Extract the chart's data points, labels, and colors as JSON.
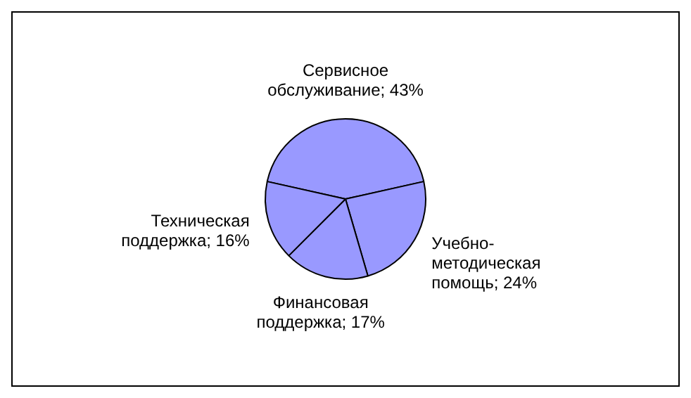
{
  "chart_data": {
    "type": "pie",
    "categories": [
      "Сервисное обслуживание",
      "Учебно-методическая помощь",
      "Финансовая поддержка",
      "Техническая поддержка"
    ],
    "values": [
      43,
      24,
      17,
      16
    ],
    "value_labels": [
      "43%",
      "24%",
      "17%",
      "16%"
    ],
    "colors": [
      "#9999ff",
      "#9999ff",
      "#9999ff",
      "#9999ff"
    ],
    "legend": false
  }
}
